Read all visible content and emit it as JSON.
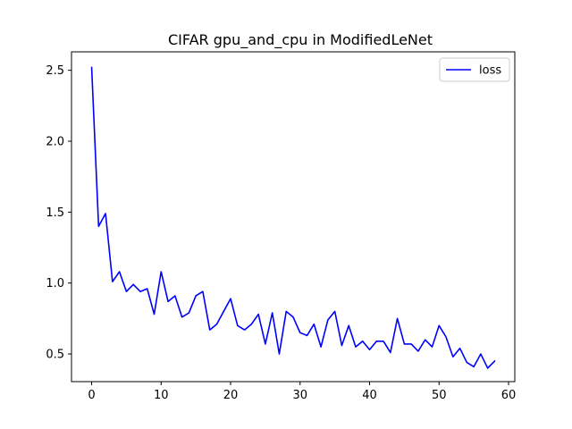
{
  "chart_data": {
    "type": "line",
    "title": "CIFAR gpu_and_cpu in ModifiedLeNet",
    "xlabel": "",
    "ylabel": "",
    "xlim": [
      -2.9,
      60.9
    ],
    "ylim": [
      0.305,
      2.63
    ],
    "xticks": [
      0,
      10,
      20,
      30,
      40,
      50,
      60
    ],
    "yticks": [
      0.5,
      1.0,
      1.5,
      2.0,
      2.5
    ],
    "legend": {
      "position": "top-right"
    },
    "grid": false,
    "series": [
      {
        "name": "loss",
        "color": "#0000ff",
        "x": [
          0,
          1,
          2,
          3,
          4,
          5,
          6,
          7,
          8,
          9,
          10,
          11,
          12,
          13,
          14,
          15,
          16,
          17,
          18,
          19,
          20,
          21,
          22,
          23,
          24,
          25,
          26,
          27,
          28,
          29,
          30,
          31,
          32,
          33,
          34,
          35,
          36,
          37,
          38,
          39,
          40,
          41,
          42,
          43,
          44,
          45,
          46,
          47,
          48,
          49,
          50,
          51,
          52,
          53,
          54,
          55,
          56,
          57,
          58
        ],
        "y": [
          2.52,
          1.4,
          1.49,
          1.01,
          1.08,
          0.94,
          0.99,
          0.94,
          0.96,
          0.78,
          1.08,
          0.87,
          0.91,
          0.76,
          0.79,
          0.91,
          0.94,
          0.67,
          0.71,
          0.8,
          0.89,
          0.7,
          0.67,
          0.71,
          0.78,
          0.57,
          0.79,
          0.5,
          0.8,
          0.76,
          0.65,
          0.63,
          0.71,
          0.55,
          0.74,
          0.8,
          0.56,
          0.7,
          0.55,
          0.59,
          0.53,
          0.59,
          0.59,
          0.51,
          0.75,
          0.57,
          0.57,
          0.52,
          0.6,
          0.55,
          0.7,
          0.62,
          0.48,
          0.54,
          0.44,
          0.41,
          0.5,
          0.4,
          0.45
        ]
      }
    ]
  }
}
